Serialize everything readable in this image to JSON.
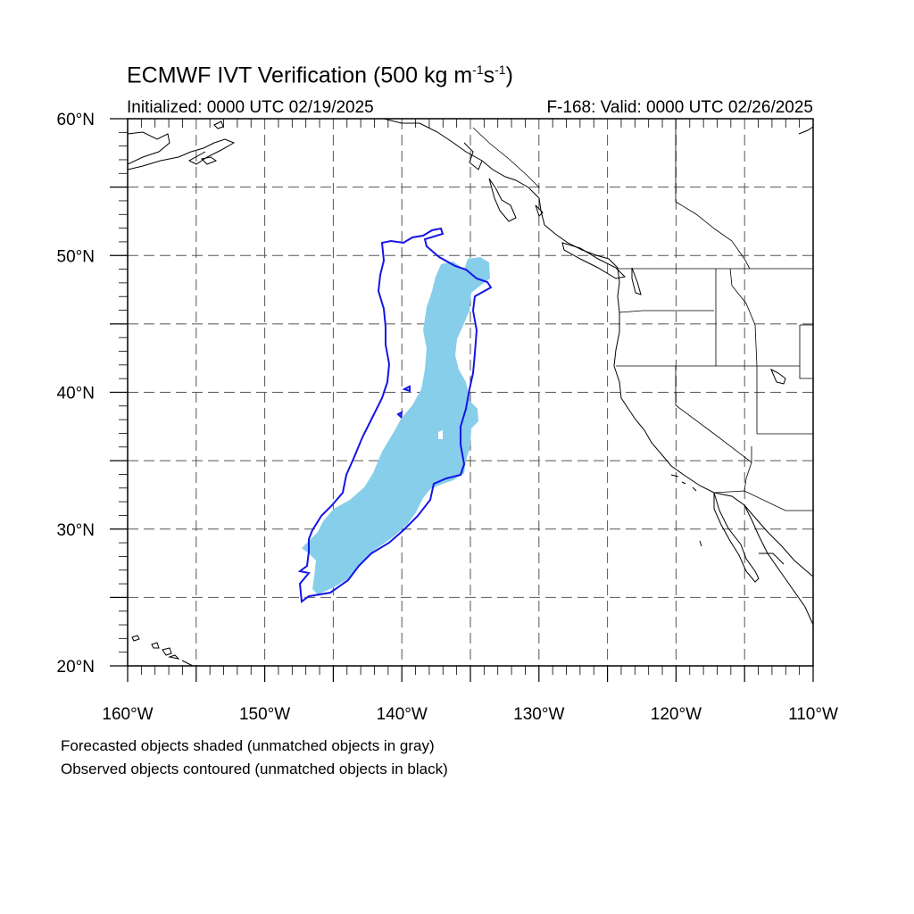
{
  "title": {
    "main": "ECMWF IVT Verification (500 kg m",
    "exp1": "-1",
    "mid": "s",
    "exp2": "-1",
    "end": ")"
  },
  "subtitle": {
    "left": "Initialized: 0000 UTC 02/19/2025",
    "right": "F-168: Valid: 0000 UTC 02/26/2025"
  },
  "map": {
    "lon_range": [
      -160,
      -110
    ],
    "lat_range": [
      20,
      60
    ],
    "lon_ticks": [
      {
        "value": -160,
        "label": "160°W"
      },
      {
        "value": -150,
        "label": "150°W"
      },
      {
        "value": -140,
        "label": "140°W"
      },
      {
        "value": -130,
        "label": "130°W"
      },
      {
        "value": -120,
        "label": "120°W"
      },
      {
        "value": -110,
        "label": "110°W"
      }
    ],
    "lat_ticks": [
      {
        "value": 20,
        "label": "20°N"
      },
      {
        "value": 30,
        "label": "30°N"
      },
      {
        "value": 40,
        "label": "40°N"
      },
      {
        "value": 50,
        "label": "50°N"
      },
      {
        "value": 60,
        "label": "60°N"
      }
    ],
    "gridline_lons": [
      -155,
      -150,
      -145,
      -140,
      -135,
      -130,
      -125,
      -120,
      -115
    ],
    "gridline_lats": [
      25,
      30,
      35,
      40,
      45,
      50,
      55
    ],
    "colors": {
      "forecast_fill": "#87ceeb",
      "observed_contour": "#1515e6",
      "coastline": "#000000"
    }
  },
  "caption": {
    "line1": "Forecasted objects shaded (unmatched objects in gray)",
    "line2": "Observed objects contoured (unmatched objects in black)"
  }
}
